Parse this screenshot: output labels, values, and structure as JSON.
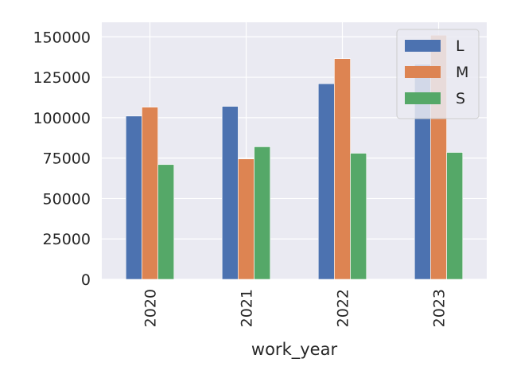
{
  "chart_data": {
    "type": "bar",
    "categories": [
      "2020",
      "2021",
      "2022",
      "2023"
    ],
    "series": [
      {
        "name": "L",
        "color": "#4c72b0",
        "values": [
          101000,
          107000,
          121000,
          133000
        ]
      },
      {
        "name": "M",
        "color": "#dd8452",
        "values": [
          106500,
          74500,
          136500,
          151000
        ]
      },
      {
        "name": "S",
        "color": "#55a868",
        "values": [
          71000,
          82000,
          78000,
          78500
        ]
      }
    ],
    "xlabel": "work_year",
    "ylabel": "",
    "ylim": [
      0,
      159000
    ],
    "yticks": [
      0,
      25000,
      50000,
      75000,
      100000,
      125000,
      150000
    ],
    "ytick_labels": [
      "0",
      "25000",
      "50000",
      "75000",
      "100000",
      "125000",
      "150000"
    ],
    "grid": true,
    "legend": "top-right",
    "background": "#eaeaf2"
  }
}
